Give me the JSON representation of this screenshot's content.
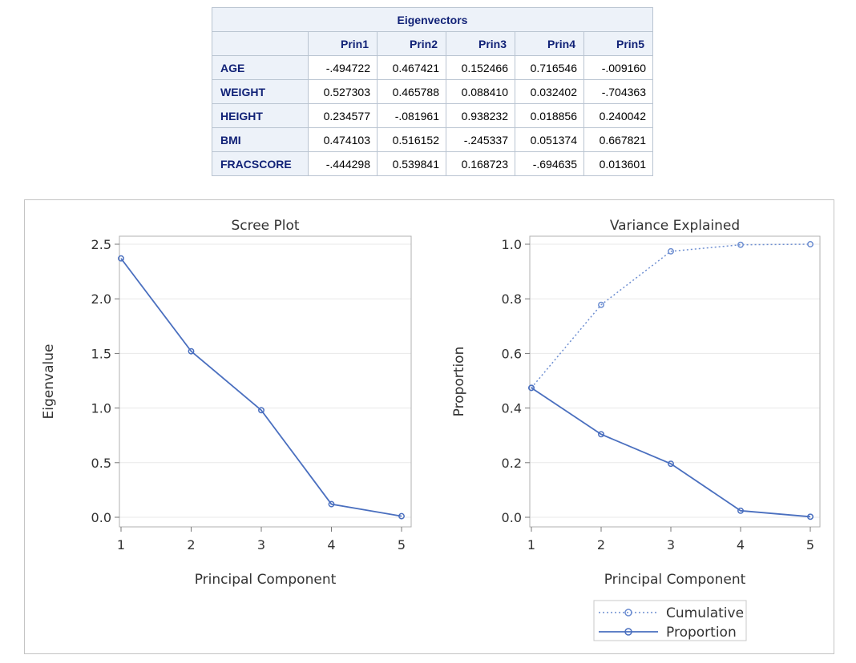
{
  "table": {
    "title": "Eigenvectors",
    "columns": [
      "Prin1",
      "Prin2",
      "Prin3",
      "Prin4",
      "Prin5"
    ],
    "rows": [
      {
        "label": "AGE",
        "values": [
          "-.494722",
          "0.467421",
          "0.152466",
          "0.716546",
          "-.009160"
        ]
      },
      {
        "label": "WEIGHT",
        "values": [
          "0.527303",
          "0.465788",
          "0.088410",
          "0.032402",
          "-.704363"
        ]
      },
      {
        "label": "HEIGHT",
        "values": [
          "0.234577",
          "-.081961",
          "0.938232",
          "0.018856",
          "0.240042"
        ]
      },
      {
        "label": "BMI",
        "values": [
          "0.474103",
          "0.516152",
          "-.245337",
          "0.051374",
          "0.667821"
        ]
      },
      {
        "label": "FRACSCORE",
        "values": [
          "-.444298",
          "0.539841",
          "0.168723",
          "-.694635",
          "0.013601"
        ]
      }
    ]
  },
  "chart_data": [
    {
      "type": "line",
      "title": "Scree Plot",
      "xlabel": "Principal Component",
      "ylabel": "Eigenvalue",
      "x": [
        1,
        2,
        3,
        4,
        5
      ],
      "xticks": [
        "1",
        "2",
        "3",
        "4",
        "5"
      ],
      "ylim": [
        0,
        2.5
      ],
      "yticks": [
        "0.0",
        "0.5",
        "1.0",
        "1.5",
        "2.0",
        "2.5"
      ],
      "grid": true,
      "series": [
        {
          "values": [
            2.37,
            1.52,
            0.98,
            0.12,
            0.01
          ],
          "color": "#4a6fbf",
          "style": "solid"
        }
      ]
    },
    {
      "type": "line",
      "title": "Variance Explained",
      "xlabel": "Principal Component",
      "ylabel": "Proportion",
      "x": [
        1,
        2,
        3,
        4,
        5
      ],
      "xticks": [
        "1",
        "2",
        "3",
        "4",
        "5"
      ],
      "ylim": [
        0,
        1.0
      ],
      "yticks": [
        "0.0",
        "0.2",
        "0.4",
        "0.6",
        "0.8",
        "1.0"
      ],
      "grid": true,
      "legend": "bottom-right",
      "series": [
        {
          "name": "Cumulative",
          "values": [
            0.474,
            0.778,
            0.974,
            0.998,
            1.0
          ],
          "color": "#6d8ed1",
          "style": "dotted"
        },
        {
          "name": "Proportion",
          "values": [
            0.474,
            0.304,
            0.196,
            0.024,
            0.002
          ],
          "color": "#4a6fbf",
          "style": "solid"
        }
      ]
    }
  ]
}
